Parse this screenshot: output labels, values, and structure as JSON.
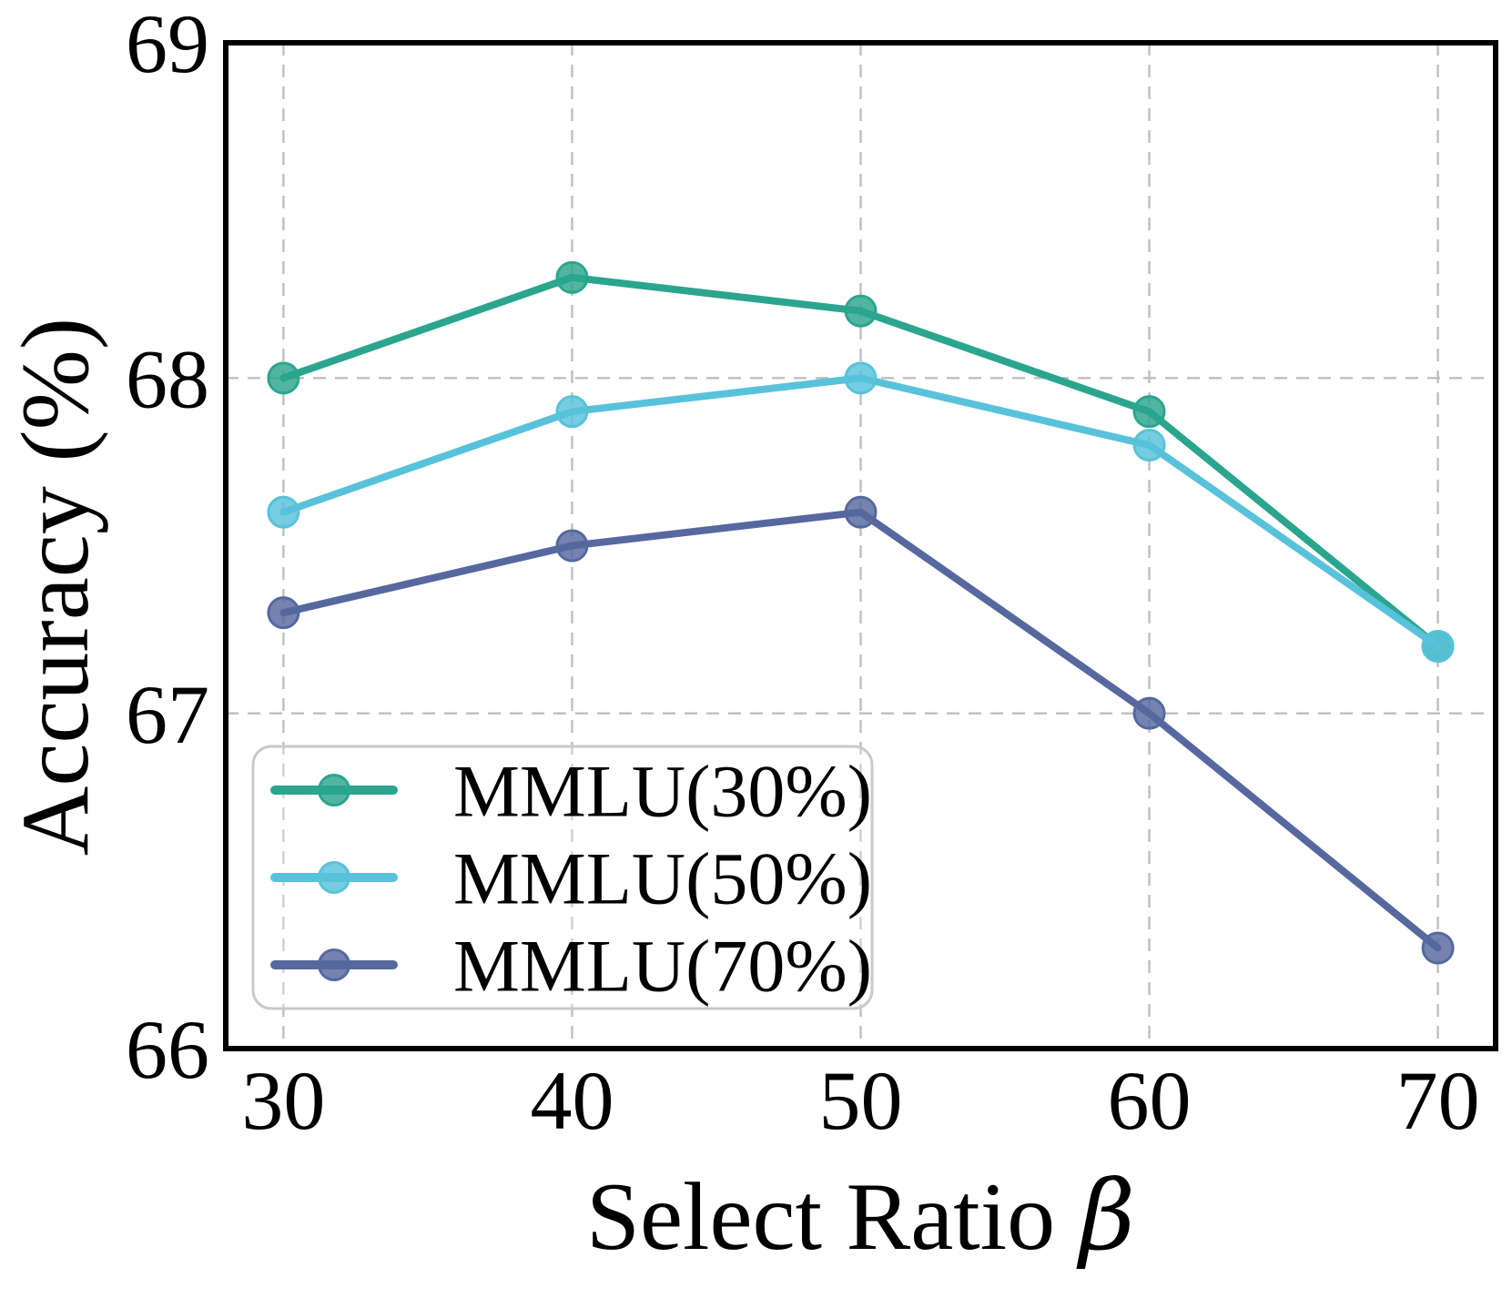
{
  "chart_data": {
    "type": "line",
    "x": [
      30,
      40,
      50,
      60,
      70
    ],
    "series": [
      {
        "name": "MMLU(30%)",
        "values": [
          68.0,
          68.3,
          68.2,
          67.9,
          67.2
        ],
        "color": "#2ba58e"
      },
      {
        "name": "MMLU(50%)",
        "values": [
          67.6,
          67.9,
          68.0,
          67.8,
          67.2
        ],
        "color": "#58c2da"
      },
      {
        "name": "MMLU(70%)",
        "values": [
          67.3,
          67.5,
          67.6,
          67.0,
          66.3
        ],
        "color": "#56689e"
      }
    ],
    "title": "",
    "xlabel": "Select Ratio β",
    "xlabel_text": "Select Ratio ",
    "xlabel_symbol": "β",
    "ylabel": "Accuracy (%)",
    "xticks": [
      "30",
      "40",
      "50",
      "60",
      "70"
    ],
    "xtick_values": [
      30,
      40,
      50,
      60,
      70
    ],
    "yticks": [
      "66",
      "67",
      "68",
      "69"
    ],
    "ytick_values": [
      66,
      67,
      68,
      69
    ],
    "xlim": [
      28,
      72
    ],
    "ylim": [
      66,
      69
    ],
    "grid": true,
    "grid_style": "dashed",
    "legend_position": "lower left",
    "legend_entries": [
      "MMLU(30%)",
      "MMLU(50%)",
      "MMLU(70%)"
    ]
  },
  "style": {
    "background": "#ffffff",
    "spine_color": "#000000",
    "grid_color": "#bfbfbf",
    "text_color": "#000000",
    "legend_border_color": "#c9c9c9"
  }
}
